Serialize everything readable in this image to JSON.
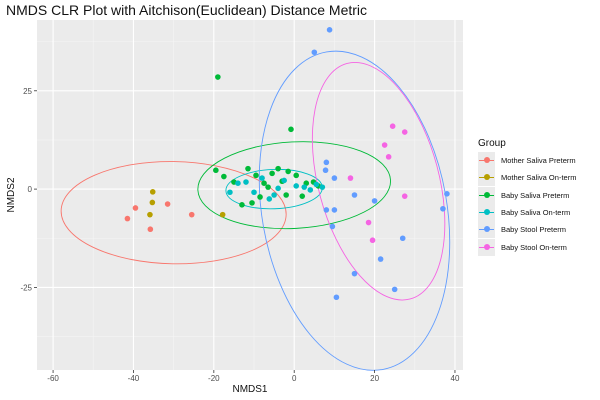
{
  "chart_data": {
    "type": "scatter",
    "title": "NMDS CLR Plot with Aitchison(Euclidean) Distance Metric",
    "xlabel": "NMDS1",
    "ylabel": "NMDS2",
    "xlim": [
      -64,
      42
    ],
    "ylim": [
      -46,
      43
    ],
    "x_ticks": [
      -60,
      -40,
      -20,
      0,
      20,
      40
    ],
    "y_ticks": [
      -25,
      0,
      25
    ],
    "grid": true,
    "legend": {
      "title": "Group",
      "position": "right"
    },
    "ellipses_shown": true,
    "series": [
      {
        "name": "Mother Saliva Preterm",
        "color": "#F8766D",
        "points": [
          {
            "x": -41.5,
            "y": -7.5
          },
          {
            "x": -39.5,
            "y": -4.8
          },
          {
            "x": -35.8,
            "y": -10.2
          },
          {
            "x": -31.5,
            "y": -3.8
          },
          {
            "x": -25.5,
            "y": -6.5
          }
        ],
        "ellipse": {
          "cx": -30,
          "cy": -6,
          "rx": 28,
          "ry": 13,
          "angle": -1
        }
      },
      {
        "name": "Mother Saliva On-term",
        "color": "#B79F00",
        "points": [
          {
            "x": -35.2,
            "y": -0.7
          },
          {
            "x": -35.3,
            "y": -3.4
          },
          {
            "x": -35.9,
            "y": -6.5
          },
          {
            "x": -17.8,
            "y": -6.5
          }
        ],
        "ellipse": null
      },
      {
        "name": "Baby Saliva Preterm",
        "color": "#00BA38",
        "points": [
          {
            "x": -19,
            "y": 28.5
          },
          {
            "x": -19.5,
            "y": 4.8
          },
          {
            "x": -17.5,
            "y": 3.2
          },
          {
            "x": -15,
            "y": 1.8
          },
          {
            "x": -13,
            "y": -4
          },
          {
            "x": -11.5,
            "y": 5.2
          },
          {
            "x": -10.5,
            "y": -3.5
          },
          {
            "x": -9.5,
            "y": 3.5
          },
          {
            "x": -8.5,
            "y": -2
          },
          {
            "x": -7.5,
            "y": 1.5
          },
          {
            "x": -6.5,
            "y": 0.5
          },
          {
            "x": -5.5,
            "y": 4
          },
          {
            "x": -4,
            "y": 5.2
          },
          {
            "x": -3,
            "y": 2
          },
          {
            "x": -2,
            "y": -1.5
          },
          {
            "x": -1.5,
            "y": 4.5
          },
          {
            "x": -0.8,
            "y": 15.2
          },
          {
            "x": 0.5,
            "y": 3.5
          },
          {
            "x": 2,
            "y": -1.8
          },
          {
            "x": 3,
            "y": 1.5
          },
          {
            "x": 4.8,
            "y": 1.8
          },
          {
            "x": 6,
            "y": 0.8
          }
        ],
        "ellipse": {
          "cx": 0,
          "cy": 1,
          "rx": 24,
          "ry": 11,
          "angle": 3
        }
      },
      {
        "name": "Baby Saliva On-term",
        "color": "#00BFC4",
        "points": [
          {
            "x": -16,
            "y": -0.8
          },
          {
            "x": -14,
            "y": 1.5
          },
          {
            "x": -12,
            "y": 1.8
          },
          {
            "x": -10,
            "y": -0.8
          },
          {
            "x": -8,
            "y": 2.8
          },
          {
            "x": -6.2,
            "y": -2.5
          },
          {
            "x": -5,
            "y": -1.5
          },
          {
            "x": -4,
            "y": 0.2
          },
          {
            "x": -2.5,
            "y": 2.2
          },
          {
            "x": 0.5,
            "y": 0.8
          },
          {
            "x": 2.5,
            "y": 0.5
          },
          {
            "x": 4,
            "y": -0.2
          },
          {
            "x": 5.5,
            "y": 1.2
          },
          {
            "x": 7,
            "y": 0.5
          }
        ],
        "ellipse": {
          "cx": -5,
          "cy": 0,
          "rx": 12,
          "ry": 5,
          "angle": 2
        }
      },
      {
        "name": "Baby Stool Preterm",
        "color": "#619CFF",
        "points": [
          {
            "x": 8.8,
            "y": 40.5
          },
          {
            "x": 5,
            "y": 34.8
          },
          {
            "x": 8,
            "y": 6.8
          },
          {
            "x": 7.8,
            "y": 4.8
          },
          {
            "x": 10,
            "y": 2.8
          },
          {
            "x": 15,
            "y": -1.5
          },
          {
            "x": 8,
            "y": -5.3
          },
          {
            "x": 10,
            "y": -5.3
          },
          {
            "x": 9.5,
            "y": -9.5
          },
          {
            "x": 20,
            "y": -3
          },
          {
            "x": 10.5,
            "y": -27.5
          },
          {
            "x": 15,
            "y": -21.5
          },
          {
            "x": 21.5,
            "y": -17.8
          },
          {
            "x": 25,
            "y": -25.5
          },
          {
            "x": 27,
            "y": -12.5
          },
          {
            "x": 37,
            "y": -5
          },
          {
            "x": 38,
            "y": -1.2
          }
        ],
        "ellipse": {
          "cx": 15,
          "cy": -5.5,
          "rx": 23,
          "ry": 41,
          "angle": 10
        }
      },
      {
        "name": "Baby Stool On-term",
        "color": "#F564E3",
        "points": [
          {
            "x": 24.5,
            "y": 16
          },
          {
            "x": 27.5,
            "y": 14.5
          },
          {
            "x": 22.5,
            "y": 11.2
          },
          {
            "x": 23.5,
            "y": 8.2
          },
          {
            "x": 14,
            "y": 2.8
          },
          {
            "x": 27.5,
            "y": -1.8
          },
          {
            "x": 18.5,
            "y": -8.5
          },
          {
            "x": 19.5,
            "y": -13
          }
        ],
        "ellipse": {
          "cx": 21,
          "cy": 2,
          "rx": 15,
          "ry": 31,
          "angle": 15
        }
      }
    ]
  }
}
